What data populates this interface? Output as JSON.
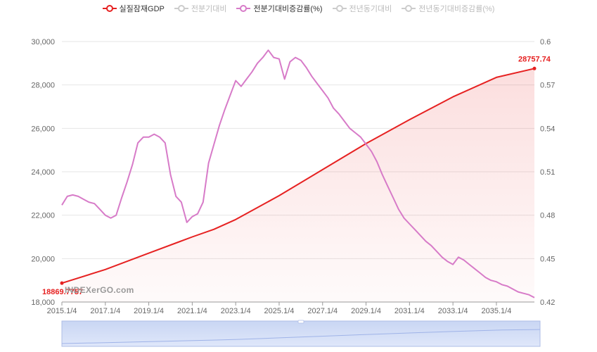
{
  "legend": [
    {
      "label": "실질잠재GDP",
      "color": "#e62121",
      "active": true
    },
    {
      "label": "전분기대비",
      "color": "#cccccc",
      "active": false
    },
    {
      "label": "전분기대비증감률(%)",
      "color": "#d77bc8",
      "active": true
    },
    {
      "label": "전년동기대비",
      "color": "#cccccc",
      "active": false
    },
    {
      "label": "전년동기대비증감률(%)",
      "color": "#cccccc",
      "active": false
    }
  ],
  "watermark": "INDEXerGO.com",
  "chart_data": {
    "type": "line",
    "x_tick_labels": [
      "2015.1/4",
      "2017.1/4",
      "2019.1/4",
      "2021.1/4",
      "2023.1/4",
      "2025.1/4",
      "2027.1/4",
      "2029.1/4",
      "2031.1/4",
      "2033.1/4",
      "2035.1/4"
    ],
    "x_range": [
      2015.0,
      2036.75
    ],
    "y_left": {
      "min": 18000,
      "max": 30000,
      "ticks": [
        18000,
        20000,
        22000,
        24000,
        26000,
        28000,
        30000
      ],
      "labels": [
        "18,000",
        "20,000",
        "22,000",
        "24,000",
        "26,000",
        "28,000",
        "30,000"
      ]
    },
    "y_right": {
      "min": 0.42,
      "max": 0.6,
      "ticks": [
        0.42,
        0.45,
        0.48,
        0.51,
        0.54,
        0.57,
        0.6
      ],
      "labels": [
        "0.42",
        "0.45",
        "0.48",
        "0.51",
        "0.54",
        "0.57",
        "0.6"
      ]
    },
    "series": [
      {
        "name": "실질잠재GDP",
        "axis": "left",
        "color": "#e62121",
        "area": true,
        "start_label": "18869.7757",
        "end_label": "28757.74",
        "points": [
          [
            2015.0,
            18869.78
          ],
          [
            2017.0,
            19500
          ],
          [
            2019.0,
            20250
          ],
          [
            2021.0,
            21000
          ],
          [
            2022.0,
            21350
          ],
          [
            2023.0,
            21800
          ],
          [
            2025.0,
            22900
          ],
          [
            2027.0,
            24100
          ],
          [
            2029.0,
            25300
          ],
          [
            2031.0,
            26400
          ],
          [
            2033.0,
            27450
          ],
          [
            2035.0,
            28350
          ],
          [
            2036.75,
            28757.74
          ]
        ]
      },
      {
        "name": "전분기대비증감률(%)",
        "axis": "right",
        "color": "#d77bc8",
        "area": false,
        "points": [
          [
            2015.0,
            0.487
          ],
          [
            2015.25,
            0.493
          ],
          [
            2015.5,
            0.494
          ],
          [
            2015.75,
            0.493
          ],
          [
            2016.0,
            0.491
          ],
          [
            2016.25,
            0.489
          ],
          [
            2016.5,
            0.488
          ],
          [
            2016.75,
            0.484
          ],
          [
            2017.0,
            0.48
          ],
          [
            2017.25,
            0.478
          ],
          [
            2017.5,
            0.48
          ],
          [
            2017.75,
            0.492
          ],
          [
            2018.0,
            0.503
          ],
          [
            2018.25,
            0.515
          ],
          [
            2018.5,
            0.53
          ],
          [
            2018.75,
            0.534
          ],
          [
            2019.0,
            0.534
          ],
          [
            2019.25,
            0.536
          ],
          [
            2019.5,
            0.534
          ],
          [
            2019.75,
            0.53
          ],
          [
            2020.0,
            0.508
          ],
          [
            2020.25,
            0.493
          ],
          [
            2020.5,
            0.489
          ],
          [
            2020.75,
            0.475
          ],
          [
            2021.0,
            0.479
          ],
          [
            2021.25,
            0.481
          ],
          [
            2021.5,
            0.489
          ],
          [
            2021.75,
            0.516
          ],
          [
            2022.0,
            0.529
          ],
          [
            2022.25,
            0.542
          ],
          [
            2022.5,
            0.553
          ],
          [
            2022.75,
            0.563
          ],
          [
            2023.0,
            0.573
          ],
          [
            2023.25,
            0.569
          ],
          [
            2023.5,
            0.574
          ],
          [
            2023.75,
            0.579
          ],
          [
            2024.0,
            0.585
          ],
          [
            2024.25,
            0.589
          ],
          [
            2024.5,
            0.594
          ],
          [
            2024.75,
            0.589
          ],
          [
            2025.0,
            0.588
          ],
          [
            2025.25,
            0.574
          ],
          [
            2025.5,
            0.586
          ],
          [
            2025.75,
            0.589
          ],
          [
            2026.0,
            0.587
          ],
          [
            2026.25,
            0.582
          ],
          [
            2026.5,
            0.576
          ],
          [
            2026.75,
            0.571
          ],
          [
            2027.0,
            0.566
          ],
          [
            2027.25,
            0.561
          ],
          [
            2027.5,
            0.554
          ],
          [
            2027.75,
            0.55
          ],
          [
            2028.0,
            0.545
          ],
          [
            2028.25,
            0.54
          ],
          [
            2028.5,
            0.537
          ],
          [
            2028.75,
            0.534
          ],
          [
            2029.0,
            0.529
          ],
          [
            2029.25,
            0.524
          ],
          [
            2029.5,
            0.517
          ],
          [
            2029.75,
            0.508
          ],
          [
            2030.0,
            0.5
          ],
          [
            2030.25,
            0.492
          ],
          [
            2030.5,
            0.484
          ],
          [
            2030.75,
            0.478
          ],
          [
            2031.0,
            0.474
          ],
          [
            2031.25,
            0.47
          ],
          [
            2031.5,
            0.466
          ],
          [
            2031.75,
            0.462
          ],
          [
            2032.0,
            0.459
          ],
          [
            2032.25,
            0.455
          ],
          [
            2032.5,
            0.451
          ],
          [
            2032.75,
            0.448
          ],
          [
            2033.0,
            0.446
          ],
          [
            2033.25,
            0.451
          ],
          [
            2033.5,
            0.449
          ],
          [
            2033.75,
            0.446
          ],
          [
            2034.0,
            0.443
          ],
          [
            2034.25,
            0.44
          ],
          [
            2034.5,
            0.437
          ],
          [
            2034.75,
            0.435
          ],
          [
            2035.0,
            0.434
          ],
          [
            2035.25,
            0.432
          ],
          [
            2035.5,
            0.431
          ],
          [
            2035.75,
            0.429
          ],
          [
            2036.0,
            0.427
          ],
          [
            2036.25,
            0.426
          ],
          [
            2036.5,
            0.425
          ],
          [
            2036.75,
            0.423
          ]
        ]
      }
    ],
    "grid": true,
    "legend_position": "top-center"
  }
}
